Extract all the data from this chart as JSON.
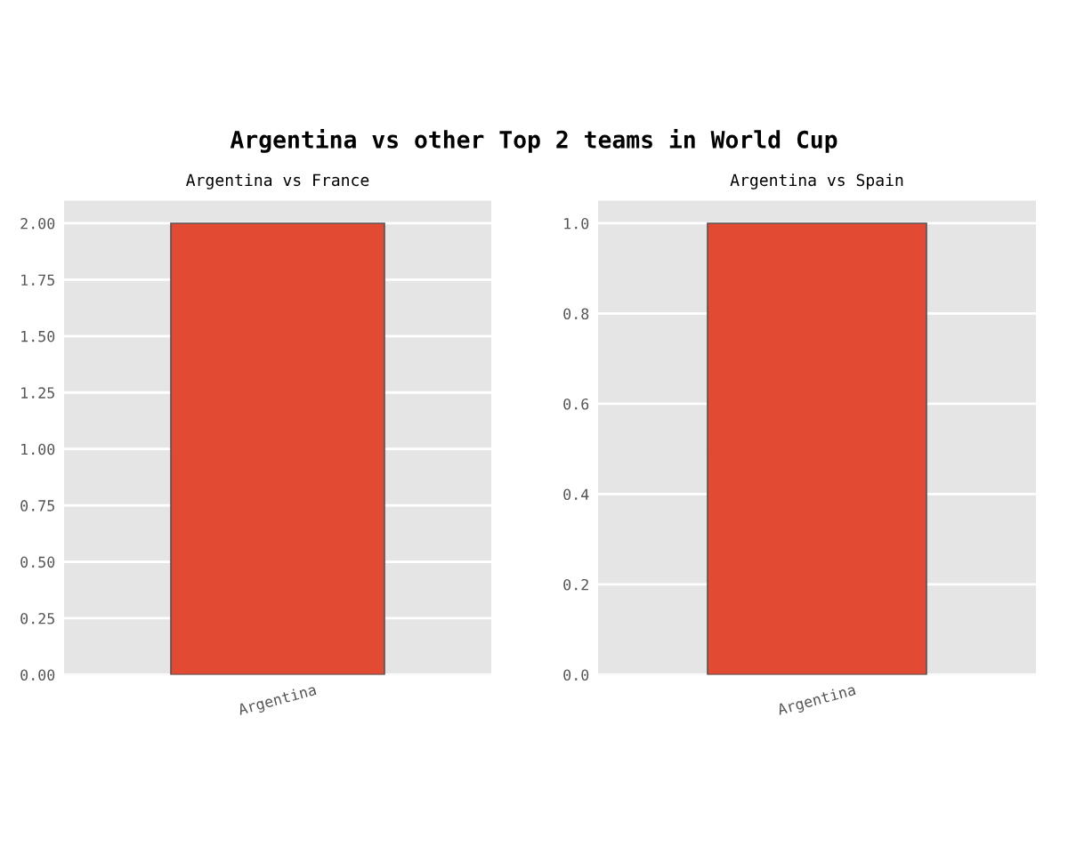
{
  "chart_data": [
    {
      "type": "bar",
      "title": "Argentina vs France",
      "annotations": [
        "Argentina vs other Top 2 teams in World Cup"
      ],
      "categories": [
        "Argentina"
      ],
      "values": [
        2
      ],
      "color": "#e24a33",
      "ylim": [
        0,
        2.1
      ],
      "yticks": [
        {
          "value": 0,
          "label": "0.00"
        },
        {
          "value": 0.25,
          "label": "0.25"
        },
        {
          "value": 0.5,
          "label": "0.50"
        },
        {
          "value": 0.75,
          "label": "0.75"
        },
        {
          "value": 1,
          "label": "1.00"
        },
        {
          "value": 1.25,
          "label": "1.25"
        },
        {
          "value": 1.5,
          "label": "1.50"
        },
        {
          "value": 1.75,
          "label": "1.75"
        },
        {
          "value": 2,
          "label": "2.00"
        }
      ],
      "grid": "y"
    },
    {
      "type": "bar",
      "title": "Argentina vs Spain",
      "categories": [
        "Argentina"
      ],
      "values": [
        1
      ],
      "color": "#e24a33",
      "ylim": [
        0,
        1.05
      ],
      "yticks": [
        {
          "value": 0,
          "label": "0.0"
        },
        {
          "value": 0.2,
          "label": "0.2"
        },
        {
          "value": 0.4,
          "label": "0.4"
        },
        {
          "value": 0.6,
          "label": "0.6"
        },
        {
          "value": 0.8,
          "label": "0.8"
        },
        {
          "value": 1,
          "label": "1.0"
        }
      ],
      "grid": "y"
    }
  ]
}
